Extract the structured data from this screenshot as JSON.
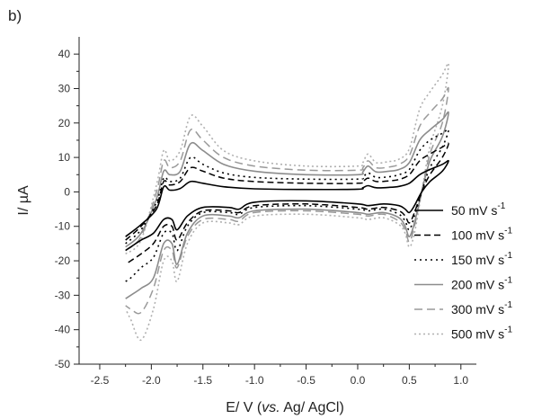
{
  "panel_label": "b)",
  "chart_data": {
    "type": "line",
    "xlabel": {
      "prefix": "E/ V (",
      "italic": "vs.",
      "suffix": " Ag/ AgCl)"
    },
    "ylabel": "I/ µA",
    "xlim": [
      -2.7,
      1.15
    ],
    "ylim": [
      -50,
      45
    ],
    "xticks": [
      -2.5,
      -2.0,
      -1.5,
      -1.0,
      -0.5,
      0.0,
      0.5,
      1.0
    ],
    "xtick_labels": [
      "-2.5",
      "-2.0",
      "-1.5",
      "-1.0",
      "-0.5",
      "0.0",
      "0.5",
      "1.0"
    ],
    "yticks": [
      -50,
      -40,
      -30,
      -20,
      -10,
      0,
      10,
      20,
      30,
      40
    ],
    "ytick_labels": [
      "-50",
      "-40",
      "-30",
      "-20",
      "-10",
      "0",
      "10",
      "20",
      "30",
      "40"
    ],
    "grid": false,
    "legend_position": "right",
    "series": [
      {
        "name": "50 mV s",
        "sup": "-1",
        "color": "#000000",
        "dash": "",
        "width": 1.6,
        "anodic": [
          [
            -2.25,
            -13
          ],
          [
            -2.1,
            -9.5
          ],
          [
            -1.95,
            -5
          ],
          [
            -1.88,
            1.5
          ],
          [
            -1.82,
            0.5
          ],
          [
            -1.72,
            1
          ],
          [
            -1.62,
            3
          ],
          [
            -1.5,
            2.5
          ],
          [
            -1.3,
            1.5
          ],
          [
            -1,
            0.9
          ],
          [
            -0.5,
            0.7
          ],
          [
            0,
            0.8
          ],
          [
            0.05,
            1.2
          ],
          [
            0.1,
            1.8
          ],
          [
            0.18,
            1.2
          ],
          [
            0.3,
            1.3
          ],
          [
            0.4,
            1.6
          ],
          [
            0.5,
            2.5
          ],
          [
            0.6,
            5
          ],
          [
            0.7,
            6.5
          ],
          [
            0.82,
            8
          ],
          [
            0.88,
            9
          ]
        ],
        "cathodic": [
          [
            0.88,
            9
          ],
          [
            0.82,
            6
          ],
          [
            0.7,
            3
          ],
          [
            0.62,
            0
          ],
          [
            0.55,
            -4
          ],
          [
            0.5,
            -6
          ],
          [
            0.46,
            -5
          ],
          [
            0.4,
            -4
          ],
          [
            0.25,
            -3.5
          ],
          [
            0.1,
            -4
          ],
          [
            0,
            -3.5
          ],
          [
            -0.5,
            -2.6
          ],
          [
            -1,
            -3
          ],
          [
            -1.15,
            -5
          ],
          [
            -1.25,
            -4.5
          ],
          [
            -1.5,
            -4.5
          ],
          [
            -1.65,
            -7
          ],
          [
            -1.75,
            -11
          ],
          [
            -1.8,
            -8
          ],
          [
            -1.88,
            -8
          ],
          [
            -1.98,
            -12
          ],
          [
            -2.1,
            -14
          ],
          [
            -2.2,
            -16
          ],
          [
            -2.25,
            -17
          ]
        ]
      },
      {
        "name": "100 mV s",
        "sup": "-1",
        "color": "#000000",
        "dash": "7,4",
        "width": 1.5,
        "anodic": [
          [
            -2.25,
            -14
          ],
          [
            -2.1,
            -10
          ],
          [
            -1.95,
            -4
          ],
          [
            -1.88,
            3
          ],
          [
            -1.82,
            2
          ],
          [
            -1.72,
            3
          ],
          [
            -1.62,
            7
          ],
          [
            -1.5,
            6
          ],
          [
            -1.3,
            4
          ],
          [
            -1,
            3
          ],
          [
            -0.5,
            2.5
          ],
          [
            0,
            2.5
          ],
          [
            0.05,
            3
          ],
          [
            0.1,
            4
          ],
          [
            0.18,
            3
          ],
          [
            0.3,
            3.2
          ],
          [
            0.4,
            3.6
          ],
          [
            0.5,
            5
          ],
          [
            0.6,
            9
          ],
          [
            0.7,
            11
          ],
          [
            0.82,
            13
          ],
          [
            0.88,
            14
          ]
        ],
        "cathodic": [
          [
            0.88,
            14
          ],
          [
            0.82,
            10
          ],
          [
            0.7,
            5
          ],
          [
            0.62,
            0
          ],
          [
            0.55,
            -6
          ],
          [
            0.5,
            -9
          ],
          [
            0.46,
            -7
          ],
          [
            0.4,
            -5.5
          ],
          [
            0.25,
            -4.5
          ],
          [
            0.1,
            -5
          ],
          [
            0,
            -4.5
          ],
          [
            -0.5,
            -3.5
          ],
          [
            -1,
            -4
          ],
          [
            -1.15,
            -6
          ],
          [
            -1.25,
            -5.5
          ],
          [
            -1.5,
            -5.5
          ],
          [
            -1.65,
            -9
          ],
          [
            -1.75,
            -14
          ],
          [
            -1.8,
            -10
          ],
          [
            -1.88,
            -10
          ],
          [
            -1.98,
            -15
          ],
          [
            -2.1,
            -18
          ],
          [
            -2.2,
            -20
          ],
          [
            -2.25,
            -21
          ]
        ]
      },
      {
        "name": "150 mV s",
        "sup": "-1",
        "color": "#000000",
        "dash": "2,4",
        "width": 1.6,
        "anodic": [
          [
            -2.25,
            -15
          ],
          [
            -2.1,
            -11
          ],
          [
            -1.95,
            -3
          ],
          [
            -1.88,
            4
          ],
          [
            -1.82,
            3
          ],
          [
            -1.72,
            4
          ],
          [
            -1.62,
            10
          ],
          [
            -1.5,
            8
          ],
          [
            -1.3,
            5.5
          ],
          [
            -1,
            4.2
          ],
          [
            -0.5,
            3.7
          ],
          [
            0,
            3.7
          ],
          [
            0.05,
            4.2
          ],
          [
            0.1,
            5.5
          ],
          [
            0.18,
            4.2
          ],
          [
            0.3,
            4.4
          ],
          [
            0.4,
            5
          ],
          [
            0.5,
            6.5
          ],
          [
            0.6,
            12
          ],
          [
            0.7,
            15
          ],
          [
            0.82,
            17
          ],
          [
            0.88,
            18
          ]
        ],
        "cathodic": [
          [
            0.88,
            18
          ],
          [
            0.82,
            13
          ],
          [
            0.7,
            7
          ],
          [
            0.62,
            0
          ],
          [
            0.55,
            -7
          ],
          [
            0.5,
            -11
          ],
          [
            0.46,
            -8.5
          ],
          [
            0.4,
            -6.5
          ],
          [
            0.25,
            -5
          ],
          [
            0.1,
            -5.5
          ],
          [
            0,
            -5
          ],
          [
            -0.5,
            -4
          ],
          [
            -1,
            -4.5
          ],
          [
            -1.15,
            -6.5
          ],
          [
            -1.25,
            -6
          ],
          [
            -1.5,
            -6
          ],
          [
            -1.65,
            -10
          ],
          [
            -1.75,
            -17
          ],
          [
            -1.8,
            -12
          ],
          [
            -1.88,
            -12
          ],
          [
            -1.98,
            -19
          ],
          [
            -2.1,
            -22
          ],
          [
            -2.2,
            -25
          ],
          [
            -2.25,
            -26
          ]
        ]
      },
      {
        "name": "200 mV s",
        "sup": "-1",
        "color": "#8c8c8c",
        "dash": "",
        "width": 1.6,
        "anodic": [
          [
            -2.25,
            -16
          ],
          [
            -2.1,
            -12
          ],
          [
            -1.95,
            -2
          ],
          [
            -1.88,
            6
          ],
          [
            -1.82,
            5
          ],
          [
            -1.72,
            6
          ],
          [
            -1.62,
            14
          ],
          [
            -1.5,
            12
          ],
          [
            -1.3,
            8
          ],
          [
            -1,
            6
          ],
          [
            -0.5,
            5
          ],
          [
            0,
            5
          ],
          [
            0.05,
            5.8
          ],
          [
            0.1,
            7.5
          ],
          [
            0.18,
            5.8
          ],
          [
            0.3,
            6
          ],
          [
            0.4,
            6.5
          ],
          [
            0.5,
            8.5
          ],
          [
            0.6,
            15
          ],
          [
            0.7,
            18
          ],
          [
            0.82,
            21
          ],
          [
            0.88,
            23
          ]
        ],
        "cathodic": [
          [
            0.88,
            23
          ],
          [
            0.82,
            16
          ],
          [
            0.7,
            9
          ],
          [
            0.62,
            0
          ],
          [
            0.55,
            -9
          ],
          [
            0.5,
            -13
          ],
          [
            0.46,
            -10
          ],
          [
            0.4,
            -7.5
          ],
          [
            0.25,
            -6
          ],
          [
            0.1,
            -6.5
          ],
          [
            0,
            -6
          ],
          [
            -0.5,
            -5
          ],
          [
            -1,
            -5.5
          ],
          [
            -1.15,
            -7.5
          ],
          [
            -1.25,
            -7
          ],
          [
            -1.5,
            -7
          ],
          [
            -1.65,
            -12
          ],
          [
            -1.75,
            -21
          ],
          [
            -1.8,
            -15
          ],
          [
            -1.88,
            -15
          ],
          [
            -1.98,
            -25
          ],
          [
            -2.1,
            -28
          ],
          [
            -2.2,
            -30
          ],
          [
            -2.25,
            -31
          ]
        ]
      },
      {
        "name": "300 mV s",
        "sup": "-1",
        "color": "#9a9a9a",
        "dash": "9,5",
        "width": 1.5,
        "anodic": [
          [
            -2.25,
            -17
          ],
          [
            -2.1,
            -13
          ],
          [
            -1.95,
            0
          ],
          [
            -1.88,
            9
          ],
          [
            -1.82,
            7
          ],
          [
            -1.72,
            9
          ],
          [
            -1.62,
            18
          ],
          [
            -1.5,
            15
          ],
          [
            -1.3,
            10
          ],
          [
            -1,
            7.5
          ],
          [
            -0.5,
            6.3
          ],
          [
            0,
            6.3
          ],
          [
            0.05,
            7
          ],
          [
            0.1,
            9
          ],
          [
            0.18,
            7
          ],
          [
            0.3,
            7.2
          ],
          [
            0.4,
            8
          ],
          [
            0.5,
            10.5
          ],
          [
            0.6,
            19
          ],
          [
            0.7,
            23
          ],
          [
            0.82,
            27
          ],
          [
            0.88,
            30
          ]
        ],
        "cathodic": [
          [
            0.88,
            30
          ],
          [
            0.82,
            20
          ],
          [
            0.7,
            11
          ],
          [
            0.62,
            0
          ],
          [
            0.55,
            -10
          ],
          [
            0.5,
            -14.5
          ],
          [
            0.46,
            -11
          ],
          [
            0.4,
            -8.5
          ],
          [
            0.25,
            -6.5
          ],
          [
            0.1,
            -7
          ],
          [
            0,
            -6.5
          ],
          [
            -0.5,
            -5.5
          ],
          [
            -1,
            -6
          ],
          [
            -1.15,
            -8.5
          ],
          [
            -1.25,
            -8
          ],
          [
            -1.5,
            -8
          ],
          [
            -1.65,
            -13
          ],
          [
            -1.75,
            -22
          ],
          [
            -1.8,
            -17
          ],
          [
            -1.88,
            -17
          ],
          [
            -1.98,
            -28
          ],
          [
            -2.1,
            -35
          ],
          [
            -2.2,
            -34
          ],
          [
            -2.25,
            -33
          ]
        ]
      },
      {
        "name": "500 mV s",
        "sup": "-1",
        "color": "#b0b0b0",
        "dash": "2,3",
        "width": 1.6,
        "anodic": [
          [
            -2.25,
            -18
          ],
          [
            -2.1,
            -14
          ],
          [
            -1.95,
            2
          ],
          [
            -1.88,
            12
          ],
          [
            -1.82,
            9
          ],
          [
            -1.72,
            12
          ],
          [
            -1.62,
            22
          ],
          [
            -1.5,
            19
          ],
          [
            -1.3,
            12
          ],
          [
            -1,
            9
          ],
          [
            -0.5,
            7.5
          ],
          [
            0,
            7.5
          ],
          [
            0.05,
            8.5
          ],
          [
            0.1,
            11
          ],
          [
            0.18,
            8.5
          ],
          [
            0.3,
            8.8
          ],
          [
            0.4,
            9.5
          ],
          [
            0.5,
            12.5
          ],
          [
            0.6,
            24
          ],
          [
            0.7,
            29
          ],
          [
            0.82,
            34
          ],
          [
            0.88,
            37
          ]
        ],
        "cathodic": [
          [
            0.88,
            37
          ],
          [
            0.82,
            25
          ],
          [
            0.7,
            13
          ],
          [
            0.62,
            0
          ],
          [
            0.55,
            -12
          ],
          [
            0.5,
            -16
          ],
          [
            0.46,
            -12
          ],
          [
            0.4,
            -9.5
          ],
          [
            0.25,
            -7.5
          ],
          [
            0.1,
            -8
          ],
          [
            0,
            -7.5
          ],
          [
            -0.5,
            -6.5
          ],
          [
            -1,
            -7
          ],
          [
            -1.15,
            -9.5
          ],
          [
            -1.25,
            -9
          ],
          [
            -1.5,
            -9
          ],
          [
            -1.65,
            -15
          ],
          [
            -1.75,
            -26
          ],
          [
            -1.8,
            -20
          ],
          [
            -1.88,
            -20
          ],
          [
            -1.98,
            -34
          ],
          [
            -2.1,
            -43
          ],
          [
            -2.2,
            -37
          ],
          [
            -2.25,
            -34
          ]
        ]
      }
    ]
  }
}
